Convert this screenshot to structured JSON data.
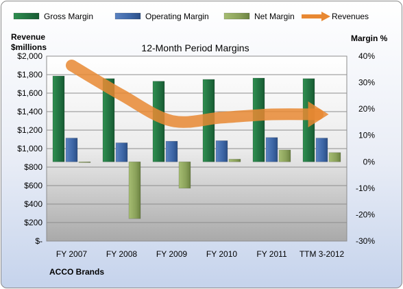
{
  "company": "ACCO Brands",
  "legend_items": [
    {
      "name": "Gross Margin",
      "color": "#24753f"
    },
    {
      "name": "Operating Margin",
      "color": "#3d66a6"
    },
    {
      "name": "Net Margin",
      "color": "#8aa15a"
    },
    {
      "name": "Revenues",
      "color": "#e88832"
    }
  ],
  "chart_data": {
    "type": "bar",
    "title": "12-Month Period Margins",
    "ylabel_left_line1": "Revenue",
    "ylabel_left_line2": "$millions",
    "ylabel_right": "Margin %",
    "categories": [
      "FY 2007",
      "FY 2008",
      "FY 2009",
      "FY 2010",
      "FY 2011",
      "TTM 3-2012"
    ],
    "left_axis": {
      "ylim": [
        0,
        2000
      ],
      "ticks": [
        0,
        200,
        400,
        600,
        800,
        1000,
        1200,
        1400,
        1600,
        1800,
        2000
      ],
      "tick_labels": [
        "$-",
        "$200",
        "$400",
        "$600",
        "$800",
        "$1,000",
        "$1,200",
        "$1,400",
        "$1,600",
        "$1,800",
        "$2,000"
      ]
    },
    "right_axis": {
      "ylim": [
        -30,
        40
      ],
      "ticks": [
        -30,
        -20,
        -10,
        0,
        10,
        20,
        30,
        40
      ],
      "tick_labels": [
        "-30%",
        "-20%",
        "-10%",
        "0%",
        "10%",
        "20%",
        "30%",
        "40%"
      ]
    },
    "series": [
      {
        "name": "Gross Margin",
        "axis": "right",
        "color": "#24753f",
        "values": [
          32.5,
          31.5,
          30.5,
          31.2,
          31.7,
          31.5
        ]
      },
      {
        "name": "Operating Margin",
        "axis": "right",
        "color": "#3d66a6",
        "values": [
          9.0,
          7.2,
          7.8,
          8.0,
          9.2,
          9.0
        ]
      },
      {
        "name": "Net Margin",
        "axis": "right",
        "color": "#8aa15a",
        "values": [
          -0.3,
          -21.5,
          -10.0,
          1.0,
          4.5,
          3.5
        ]
      },
      {
        "name": "Revenues",
        "axis": "left",
        "type": "line",
        "color": "#e88832",
        "values": [
          1900,
          1580,
          1300,
          1335,
          1370,
          1370
        ]
      }
    ],
    "grid": true,
    "legend_position": "top"
  }
}
